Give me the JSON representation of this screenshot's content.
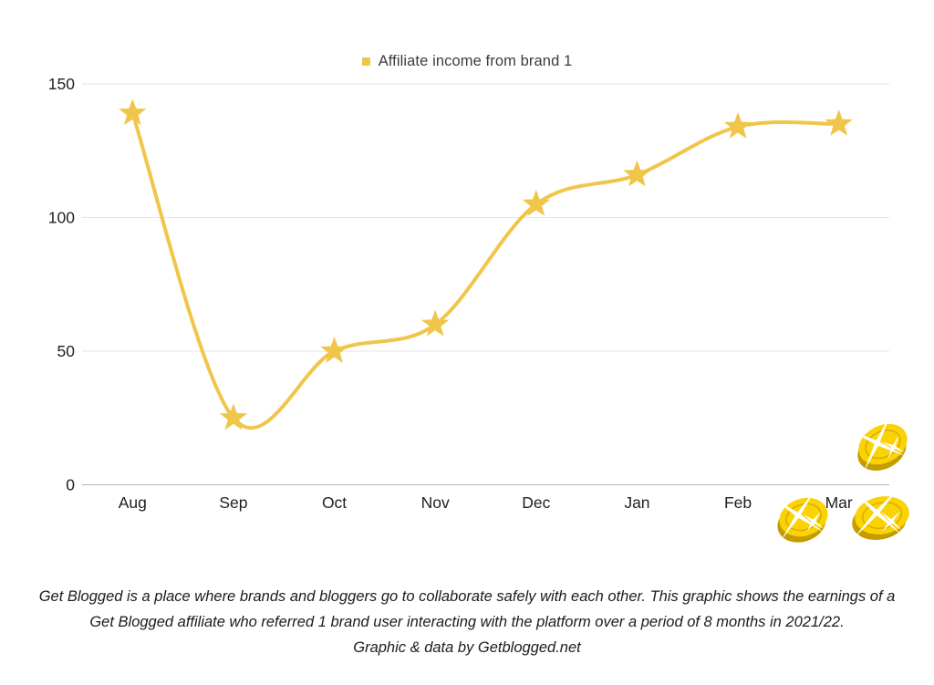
{
  "legend": {
    "label": "Affiliate income from brand 1"
  },
  "chart_data": {
    "type": "line",
    "series_name": "Affiliate income from brand 1",
    "categories": [
      "Aug",
      "Sep",
      "Oct",
      "Nov",
      "Dec",
      "Jan",
      "Feb",
      "Mar"
    ],
    "values": [
      139,
      25,
      50,
      60,
      105,
      116,
      134,
      135
    ],
    "yticks": [
      0,
      50,
      100,
      150
    ],
    "ylim": [
      0,
      150
    ],
    "marker": "star",
    "smooth": true,
    "grid": "horizontal",
    "legend_position": "top"
  },
  "colors": {
    "series": "#F0C64A",
    "legend_marker": "#F0C64A",
    "gridline": "#E6E6E6",
    "axis_line": "#B3B3B3",
    "tick_text": "#1F1F1F",
    "coin_face": "#FBD303",
    "coin_side": "#C49C00",
    "coin_ring": "#D8AE00",
    "coin_sparkle": "#FFFFFF",
    "background": "#FFFFFF"
  },
  "caption": {
    "line1": "Get Blogged is a place where brands and bloggers go to collaborate safely with each other. This graphic shows the earnings of a",
    "line2": "Get Blogged affiliate who referred 1 brand user interacting with the platform over a period of 8 months in 2021/22.",
    "line3": "Graphic & data by Getblogged.net"
  },
  "decorations": {
    "coin_icon": "gold-coin",
    "coin_count": 3
  }
}
